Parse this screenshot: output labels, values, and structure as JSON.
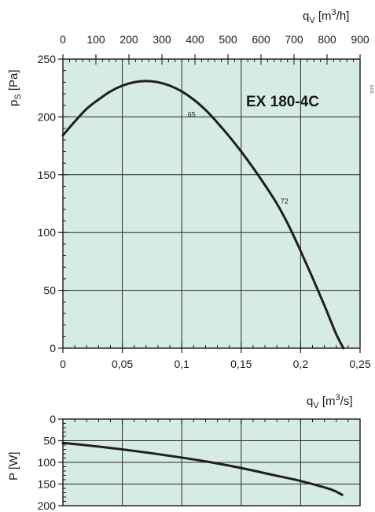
{
  "colors": {
    "plot_bg": "#d6ebe6",
    "grid": "#2a2a2a",
    "curve": "#1f1f1f",
    "text": "#1a1a1a"
  },
  "chart_data": [
    {
      "id": "pressure",
      "type": "line",
      "title": "EX 180-4C",
      "xlabel": "q_V [m^3/s]",
      "x2label": "q_V [m^3/h]",
      "ylabel": "p_S [Pa]",
      "xlim": [
        0,
        0.25
      ],
      "x2lim": [
        0,
        900
      ],
      "ylim": [
        0,
        250
      ],
      "xticks": [
        "0",
        "0,05",
        "0,1",
        "0,15",
        "0,2",
        "0,25"
      ],
      "x2ticks": [
        "0",
        "100",
        "200",
        "300",
        "400",
        "500",
        "600",
        "700",
        "800",
        "900"
      ],
      "yticks": [
        "0",
        "50",
        "100",
        "150",
        "200",
        "250"
      ],
      "grid": true,
      "series": [
        {
          "points": [
            {
              "x": 0.0,
              "y": 184
            },
            {
              "x": 0.01,
              "y": 196
            },
            {
              "x": 0.02,
              "y": 207
            },
            {
              "x": 0.03,
              "y": 215
            },
            {
              "x": 0.04,
              "y": 222
            },
            {
              "x": 0.05,
              "y": 227
            },
            {
              "x": 0.06,
              "y": 230
            },
            {
              "x": 0.07,
              "y": 231
            },
            {
              "x": 0.08,
              "y": 230
            },
            {
              "x": 0.09,
              "y": 227
            },
            {
              "x": 0.1,
              "y": 222
            },
            {
              "x": 0.11,
              "y": 215
            },
            {
              "x": 0.12,
              "y": 206
            },
            {
              "x": 0.13,
              "y": 195
            },
            {
              "x": 0.14,
              "y": 183
            },
            {
              "x": 0.15,
              "y": 170
            },
            {
              "x": 0.16,
              "y": 156
            },
            {
              "x": 0.17,
              "y": 141
            },
            {
              "x": 0.18,
              "y": 125
            },
            {
              "x": 0.19,
              "y": 106
            },
            {
              "x": 0.2,
              "y": 84
            },
            {
              "x": 0.21,
              "y": 61
            },
            {
              "x": 0.22,
              "y": 37
            },
            {
              "x": 0.23,
              "y": 12
            },
            {
              "x": 0.236,
              "y": 0
            }
          ]
        }
      ],
      "annotations": [
        {
          "text": "65",
          "x": 0.105,
          "y": 200
        },
        {
          "text": "72",
          "x": 0.183,
          "y": 125
        }
      ]
    },
    {
      "id": "power",
      "type": "line",
      "ylabel": "P [W]",
      "xlim": [
        0,
        0.25
      ],
      "ylim": [
        0,
        200
      ],
      "y_inverted": true,
      "yticks": [
        "0",
        "50",
        "100",
        "150",
        "200"
      ],
      "grid": true,
      "series": [
        {
          "points": [
            {
              "x": 0.0,
              "y": 55
            },
            {
              "x": 0.025,
              "y": 62
            },
            {
              "x": 0.05,
              "y": 70
            },
            {
              "x": 0.075,
              "y": 79
            },
            {
              "x": 0.1,
              "y": 89
            },
            {
              "x": 0.125,
              "y": 100
            },
            {
              "x": 0.15,
              "y": 113
            },
            {
              "x": 0.175,
              "y": 128
            },
            {
              "x": 0.2,
              "y": 143
            },
            {
              "x": 0.225,
              "y": 162
            },
            {
              "x": 0.235,
              "y": 175
            }
          ]
        }
      ]
    }
  ],
  "side_mark": "ccs"
}
